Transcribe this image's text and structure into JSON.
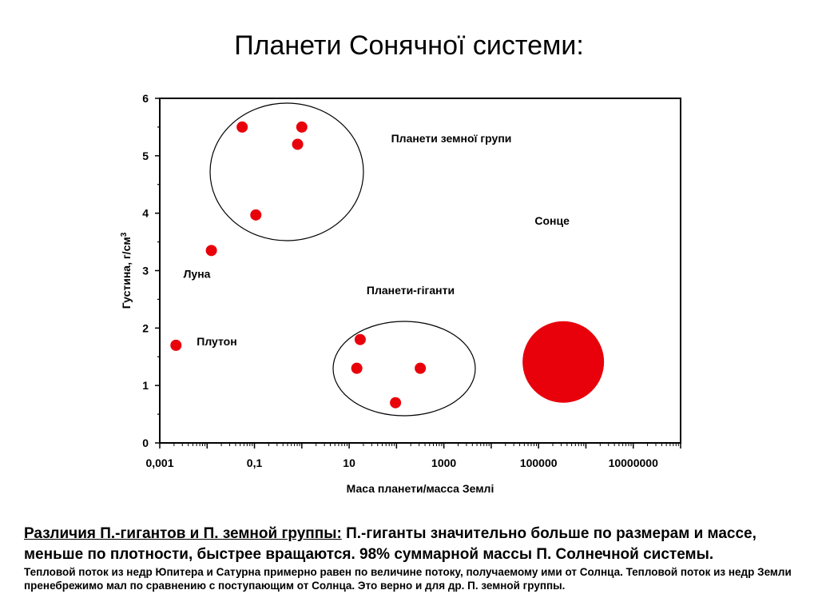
{
  "slide": {
    "title": "Планети Сонячної системи:"
  },
  "chart_data": {
    "type": "scatter",
    "xlabel": "Маса планети/масса Землі",
    "ylabel": "Густина, г/см",
    "ylabel_superscript": "3",
    "xscale": "log",
    "xlim": [
      0.001,
      100000000
    ],
    "ylim": [
      0,
      6
    ],
    "x_ticks": [
      "0,001",
      "0,1",
      "10",
      "1000",
      "100000",
      "10000000"
    ],
    "y_ticks": [
      "0",
      "1",
      "2",
      "3",
      "4",
      "5",
      "6"
    ],
    "grid": false,
    "point_color": "#e8000b",
    "points": [
      {
        "x": 0.0022,
        "y": 1.7,
        "label": "Плутон"
      },
      {
        "x": 0.0123,
        "y": 3.35,
        "label": "Луна"
      },
      {
        "x": 0.055,
        "y": 5.5
      },
      {
        "x": 0.107,
        "y": 3.97
      },
      {
        "x": 0.815,
        "y": 5.2
      },
      {
        "x": 1.0,
        "y": 5.5
      },
      {
        "x": 14.5,
        "y": 1.3
      },
      {
        "x": 17.1,
        "y": 1.8
      },
      {
        "x": 95.2,
        "y": 0.7
      },
      {
        "x": 318,
        "y": 1.3
      },
      {
        "x": 333000,
        "y": 1.41,
        "label": "Сонце",
        "big": true
      }
    ],
    "annotations": [
      {
        "text": "Планети земної групи"
      },
      {
        "text": "Планети-гіганти"
      }
    ]
  },
  "caption": {
    "lead": "Различия П.-гигантов и П. земной группы:",
    "main": " П.-гиганты значительно больше по размерам и массе, меньше по плотности, быстрее вращаются.  98% суммарной массы П. Солнечной системы.",
    "note": "Тепловой поток из недр Юпитера и Сатурна примерно равен по величине потоку, получаемому ими от Солнца. Тепловой поток из недр Земли пренебрежимо мал по сравнению с поступающим от Солнца. Это верно и для др. П. земной группы."
  }
}
